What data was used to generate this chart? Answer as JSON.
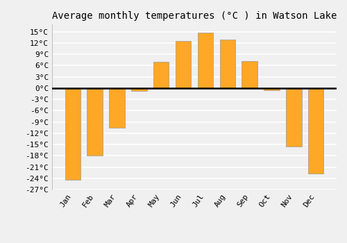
{
  "title": "Average monthly temperatures (°C ) in Watson Lake",
  "months": [
    "Jan",
    "Feb",
    "Mar",
    "Apr",
    "May",
    "Jun",
    "Jul",
    "Aug",
    "Sep",
    "Oct",
    "Nov",
    "Dec"
  ],
  "values": [
    -24.5,
    -18.0,
    -10.5,
    -0.8,
    7.0,
    12.5,
    14.8,
    13.0,
    7.2,
    -0.5,
    -15.5,
    -22.8
  ],
  "bar_color": "#FFA726",
  "bar_edge_color": "#999999",
  "ylim": [
    -27,
    17
  ],
  "yticks": [
    -27,
    -24,
    -21,
    -18,
    -15,
    -12,
    -9,
    -6,
    -3,
    0,
    3,
    6,
    9,
    12,
    15
  ],
  "ytick_labels": [
    "-27°C",
    "-24°C",
    "-21°C",
    "-18°C",
    "-15°C",
    "-12°C",
    "-9°C",
    "-6°C",
    "-3°C",
    "0°C",
    "3°C",
    "6°C",
    "9°C",
    "12°C",
    "15°C"
  ],
  "background_color": "#f0f0f0",
  "grid_color": "#ffffff",
  "title_fontsize": 10,
  "tick_fontsize": 8,
  "bar_width": 0.7
}
